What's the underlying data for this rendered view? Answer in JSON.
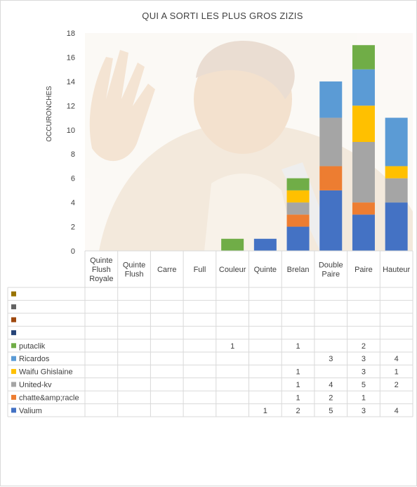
{
  "chart_data": {
    "type": "bar",
    "stacked": true,
    "title": "QUI A SORTI LES PLUS GROS ZIZIS",
    "ylabel": "OCCURONCHES",
    "xlabel": "",
    "ylim": [
      0,
      18
    ],
    "yticks": [
      0,
      2,
      4,
      6,
      8,
      10,
      12,
      14,
      16,
      18
    ],
    "grid": false,
    "legend": "data-table",
    "categories": [
      "Quinte Flush Royale",
      "Quinte Flush",
      "Carre",
      "Full",
      "Couleur",
      "Quinte",
      "Brelan",
      "Double Paire",
      "Paire",
      "Hauteur"
    ],
    "category_lines": [
      [
        "Quinte",
        "Flush",
        "Royale"
      ],
      [
        "Quinte",
        "Flush"
      ],
      [
        "Carre"
      ],
      [
        "Full"
      ],
      [
        "Couleur"
      ],
      [
        "Quinte"
      ],
      [
        "Brelan"
      ],
      [
        "Double",
        "Paire"
      ],
      [
        "Paire"
      ],
      [
        "Hauteur"
      ]
    ],
    "series": [
      {
        "name": "Valium",
        "color": "#4472c4",
        "values": [
          null,
          null,
          null,
          null,
          null,
          1,
          2,
          5,
          3,
          4
        ]
      },
      {
        "name": "chatte&amp;racle",
        "color": "#ed7d31",
        "values": [
          null,
          null,
          null,
          null,
          null,
          null,
          1,
          2,
          1,
          null
        ]
      },
      {
        "name": "United-kv",
        "color": "#a5a5a5",
        "values": [
          null,
          null,
          null,
          null,
          null,
          null,
          1,
          4,
          5,
          2
        ]
      },
      {
        "name": "Waifu Ghislaine",
        "color": "#ffc000",
        "values": [
          null,
          null,
          null,
          null,
          null,
          null,
          1,
          null,
          3,
          1
        ]
      },
      {
        "name": "Ricardos",
        "color": "#5b9bd5",
        "values": [
          null,
          null,
          null,
          null,
          null,
          null,
          null,
          3,
          3,
          4
        ]
      },
      {
        "name": "putaclik",
        "color": "#70ad47",
        "values": [
          null,
          null,
          null,
          null,
          1,
          null,
          1,
          null,
          2,
          null
        ]
      },
      {
        "name": "",
        "color": "#264478",
        "values": [
          null,
          null,
          null,
          null,
          null,
          null,
          null,
          null,
          null,
          null
        ]
      },
      {
        "name": "",
        "color": "#9e480e",
        "values": [
          null,
          null,
          null,
          null,
          null,
          null,
          null,
          null,
          null,
          null
        ]
      },
      {
        "name": "",
        "color": "#636363",
        "values": [
          null,
          null,
          null,
          null,
          null,
          null,
          null,
          null,
          null,
          null
        ]
      },
      {
        "name": "",
        "color": "#997300",
        "values": [
          null,
          null,
          null,
          null,
          null,
          null,
          null,
          null,
          null,
          null
        ]
      }
    ]
  }
}
